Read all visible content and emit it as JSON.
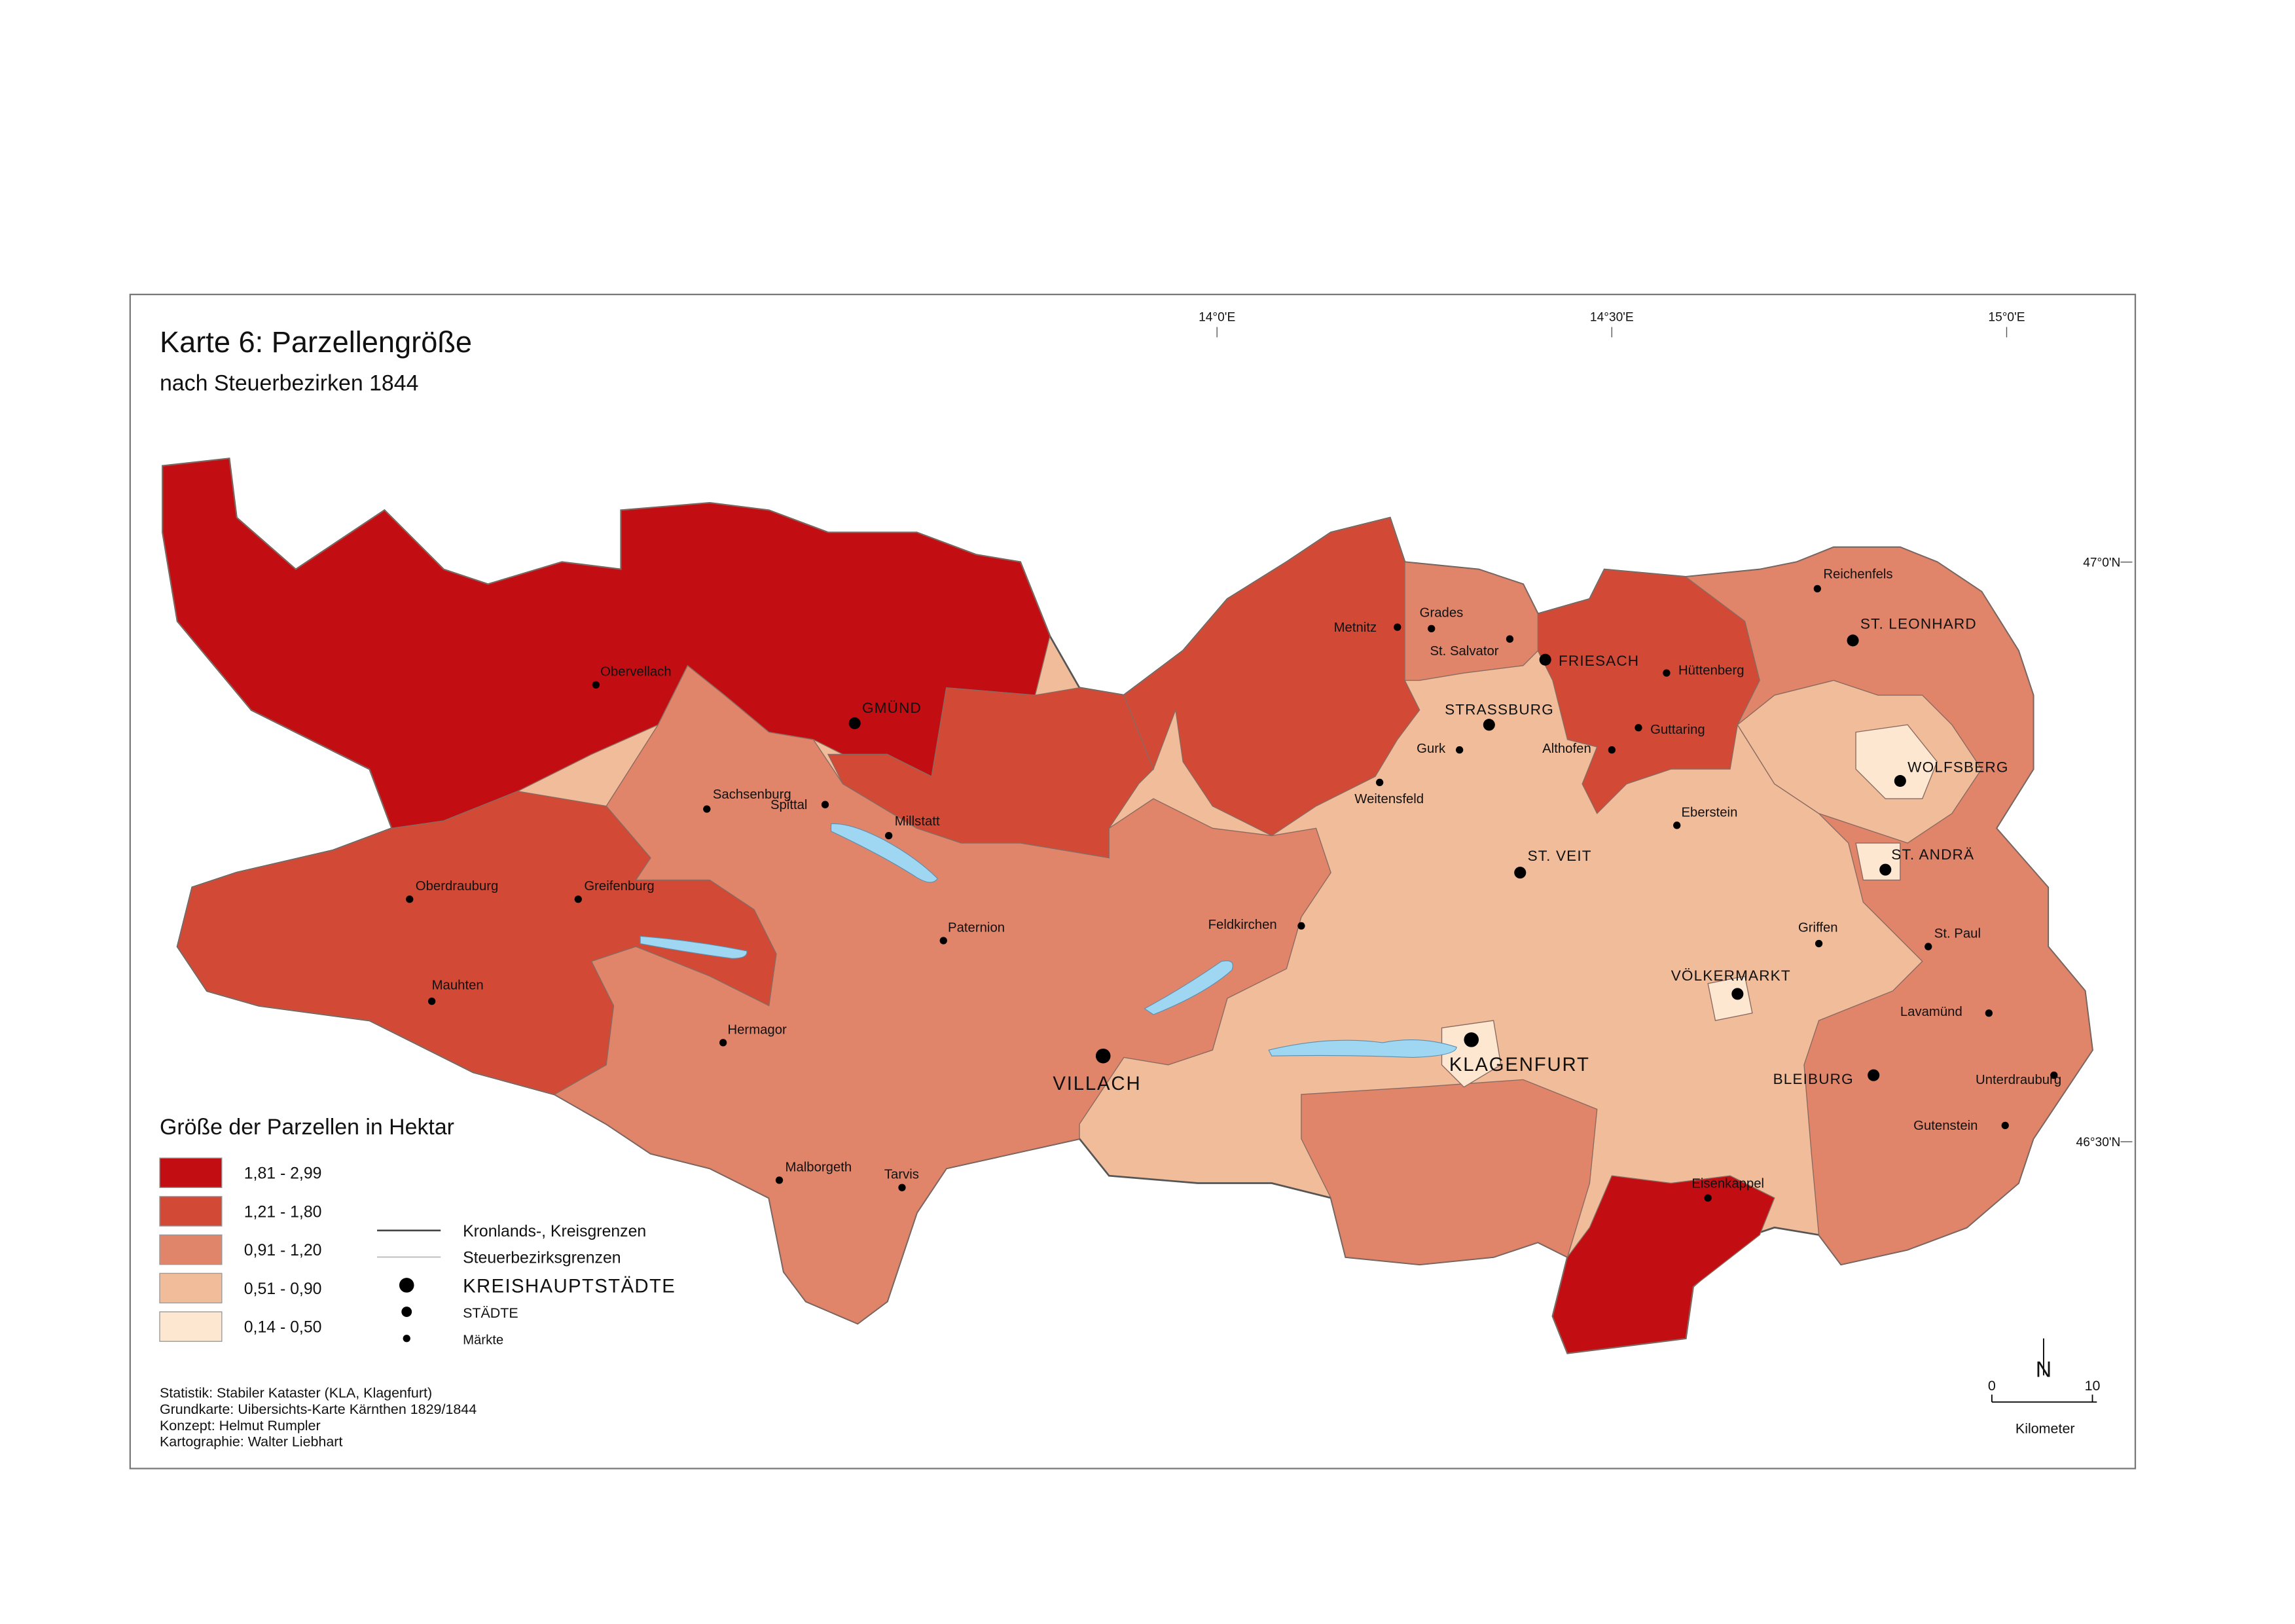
{
  "title": "Karte 6: Parzellengröße",
  "subtitle": "nach Steuerbezirken 1844",
  "coordinates": {
    "longitude": [
      "14°0'E",
      "14°30'E",
      "15°0'E"
    ],
    "latitude": [
      "47°0'N",
      "46°30'N"
    ]
  },
  "legend": {
    "title": "Größe der Parzellen in Hektar",
    "classes": [
      {
        "label": "1,81 - 2,99",
        "color": "#c20e12"
      },
      {
        "label": "1,21 - 1,80",
        "color": "#d24936"
      },
      {
        "label": "0,91 - 1,20",
        "color": "#e0846a"
      },
      {
        "label": "0,51 - 0,90",
        "color": "#f1bc9a"
      },
      {
        "label": "0,14 - 0,50",
        "color": "#fde7d0"
      }
    ],
    "lines": [
      "Kronlands-, Kreisgrenzen",
      "Steuerbezirksgrenzen"
    ],
    "places": [
      "KREISHAUPTSTÄDTE",
      "STÄDTE",
      "Märkte"
    ]
  },
  "places": [
    {
      "label": "GMÜND",
      "type": "stadt"
    },
    {
      "label": "VILLACH",
      "type": "kreishauptstadt"
    },
    {
      "label": "ST. VEIT",
      "type": "stadt"
    },
    {
      "label": "KLAGENFURT",
      "type": "kreishauptstadt"
    },
    {
      "label": "FRIESACH",
      "type": "stadt"
    },
    {
      "label": "WOLFSBERG",
      "type": "stadt"
    },
    {
      "label": "VÖLKERMARKT",
      "type": "stadt"
    },
    {
      "label": "BLEIBURG",
      "type": "stadt"
    },
    {
      "label": "STRASSBURG",
      "type": "stadt"
    },
    {
      "label": "ST. LEONHARD",
      "type": "stadt"
    },
    {
      "label": "ST. ANDRÄ",
      "type": "stadt"
    },
    {
      "label": "Obervellach",
      "type": "markt"
    },
    {
      "label": "Sachsenburg",
      "type": "markt"
    },
    {
      "label": "Millstatt",
      "type": "markt"
    },
    {
      "label": "Spittal",
      "type": "markt"
    },
    {
      "label": "Oberdrauburg",
      "type": "markt"
    },
    {
      "label": "Greifenburg",
      "type": "markt"
    },
    {
      "label": "Mauhten",
      "type": "markt"
    },
    {
      "label": "Paternion",
      "type": "markt"
    },
    {
      "label": "Hermagor",
      "type": "markt"
    },
    {
      "label": "Malborgeth",
      "type": "markt"
    },
    {
      "label": "Tarvis",
      "type": "markt"
    },
    {
      "label": "Feldkirchen",
      "type": "markt"
    },
    {
      "label": "Metnitz",
      "type": "markt"
    },
    {
      "label": "Grades",
      "type": "markt"
    },
    {
      "label": "St. Salvator",
      "type": "markt"
    },
    {
      "label": "Gurk",
      "type": "markt"
    },
    {
      "label": "Weitensfeld",
      "type": "markt"
    },
    {
      "label": "Althofen",
      "type": "markt"
    },
    {
      "label": "Guttaring",
      "type": "markt"
    },
    {
      "label": "Hüttenberg",
      "type": "markt"
    },
    {
      "label": "Eberstein",
      "type": "markt"
    },
    {
      "label": "Reichenfels",
      "type": "markt"
    },
    {
      "label": "Griffen",
      "type": "markt"
    },
    {
      "label": "St. Paul",
      "type": "markt"
    },
    {
      "label": "Lavamünd",
      "type": "markt"
    },
    {
      "label": "Unterdrauburg",
      "type": "markt"
    },
    {
      "label": "Gutenstein",
      "type": "markt"
    },
    {
      "label": "Eisenkappel",
      "type": "markt"
    }
  ],
  "credits": [
    "Statistik: Stabiler Kataster (KLA, Klagenfurt)",
    "Grundkarte: Uibersichts-Karte Kärnthen 1829/1844",
    "Konzept: Helmut Rumpler",
    "Kartographie: Walter Liebhart"
  ],
  "scale": {
    "ticks": [
      0,
      10
    ],
    "unit": "Kilometer"
  },
  "north": "N"
}
